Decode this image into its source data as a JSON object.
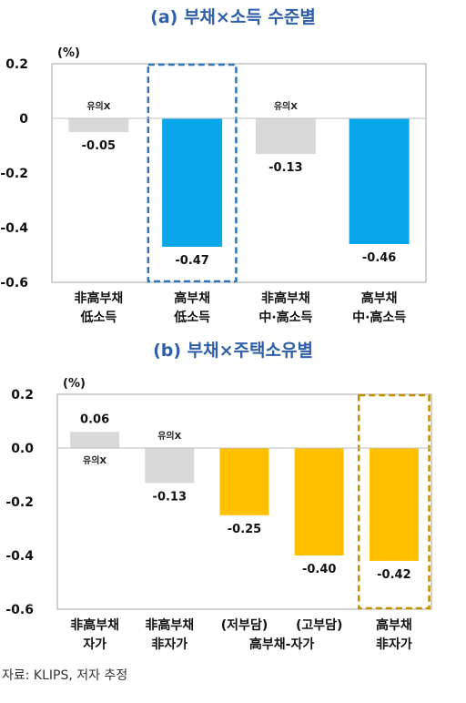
{
  "chart_data": [
    {
      "type": "bar",
      "title": "(a) 부채×소득 수준별",
      "unit_label": "(%)",
      "ylim": [
        -0.6,
        0.2
      ],
      "yticks": [
        "0.2",
        "0",
        "-0.2",
        "-0.4",
        "-0.6"
      ],
      "categories": [
        [
          "非高부채",
          "低소득"
        ],
        [
          "高부채",
          "低소득"
        ],
        [
          "非高부채",
          "中·高소득"
        ],
        [
          "高부채",
          "中·高소득"
        ]
      ],
      "values": [
        -0.05,
        -0.47,
        -0.13,
        -0.46
      ],
      "value_labels": [
        "-0.05",
        "-0.47",
        "-0.13",
        "-0.46"
      ],
      "notes": [
        "유의X",
        "",
        "유의X",
        ""
      ],
      "bar_colors": [
        "#d9d9d9",
        "#0aa6ea",
        "#d9d9d9",
        "#0aa6ea"
      ],
      "highlight_index": 1,
      "highlight_color": "#2e75b6",
      "grid": false
    },
    {
      "type": "bar",
      "title": "(b) 부채×주택소유별",
      "unit_label": "(%)",
      "ylim": [
        -0.6,
        0.2
      ],
      "yticks": [
        "0.2",
        "0.0",
        "-0.2",
        "-0.4",
        "-0.6"
      ],
      "categories": [
        [
          "非高부채",
          "자가"
        ],
        [
          "非高부채",
          "非자가"
        ],
        [
          "(저부담)",
          ""
        ],
        [
          "(고부담)",
          ""
        ],
        [
          "高부채",
          "非자가"
        ]
      ],
      "group_label": "高부채-자가",
      "values": [
        0.06,
        -0.13,
        -0.25,
        -0.4,
        -0.42
      ],
      "value_labels": [
        "0.06",
        "-0.13",
        "-0.25",
        "-0.40",
        "-0.42"
      ],
      "notes": [
        "유의X",
        "유의X",
        "",
        "",
        ""
      ],
      "bar_colors": [
        "#d9d9d9",
        "#d9d9d9",
        "#ffc000",
        "#ffc000",
        "#ffc000"
      ],
      "highlight_index": 4,
      "highlight_color": "#bf9000",
      "grid": false
    }
  ],
  "source": "자료: KLIPS, 저자 추정"
}
